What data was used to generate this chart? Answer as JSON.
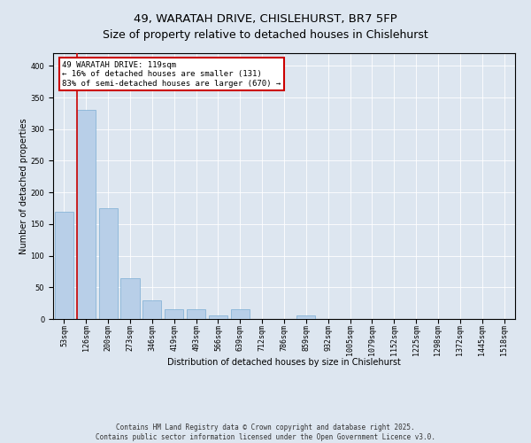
{
  "title": "49, WARATAH DRIVE, CHISLEHURST, BR7 5FP",
  "subtitle": "Size of property relative to detached houses in Chislehurst",
  "xlabel": "Distribution of detached houses by size in Chislehurst",
  "ylabel": "Number of detached properties",
  "categories": [
    "53sqm",
    "126sqm",
    "200sqm",
    "273sqm",
    "346sqm",
    "419sqm",
    "493sqm",
    "566sqm",
    "639sqm",
    "712sqm",
    "786sqm",
    "859sqm",
    "932sqm",
    "1005sqm",
    "1079sqm",
    "1152sqm",
    "1225sqm",
    "1298sqm",
    "1372sqm",
    "1445sqm",
    "1518sqm"
  ],
  "values": [
    170,
    330,
    175,
    65,
    30,
    15,
    15,
    5,
    15,
    0,
    0,
    5,
    0,
    0,
    0,
    0,
    0,
    0,
    0,
    0,
    0
  ],
  "bar_color": "#b8cfe8",
  "bar_edge_color": "#7aadd4",
  "annotation_text": "49 WARATAH DRIVE: 119sqm\n← 16% of detached houses are smaller (131)\n83% of semi-detached houses are larger (670) →",
  "annotation_box_color": "#ffffff",
  "annotation_border_color": "#cc0000",
  "vline_color": "#cc0000",
  "background_color": "#dde6f0",
  "figure_background": "#dde6f0",
  "footer_text": "Contains HM Land Registry data © Crown copyright and database right 2025.\nContains public sector information licensed under the Open Government Licence v3.0.",
  "ylim": [
    0,
    420
  ],
  "yticks": [
    0,
    50,
    100,
    150,
    200,
    250,
    300,
    350,
    400
  ],
  "title_fontsize": 9.5,
  "label_fontsize": 7,
  "tick_fontsize": 6,
  "footer_fontsize": 5.5,
  "annotation_fontsize": 6.5,
  "vline_x": 0.6
}
